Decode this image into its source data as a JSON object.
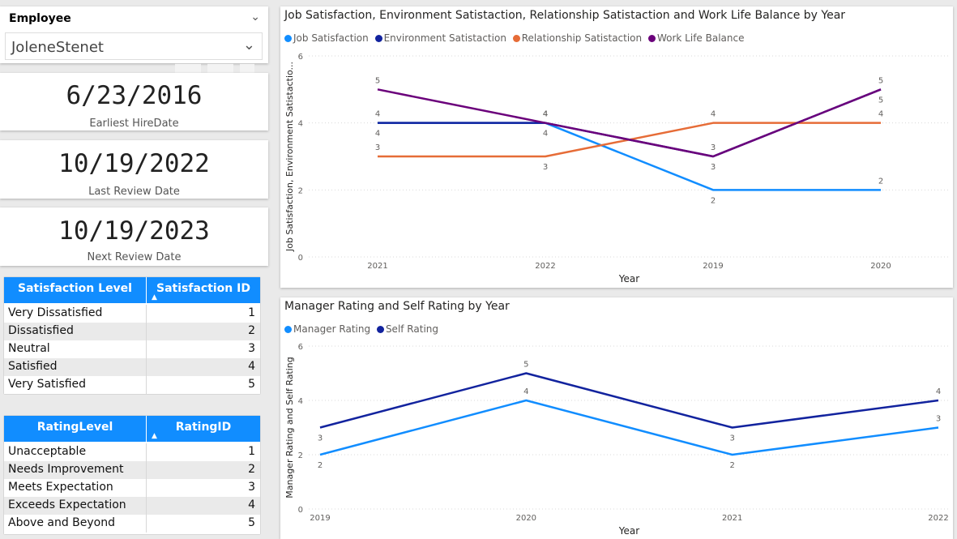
{
  "slicer": {
    "title": "Employee",
    "selected": "JoleneStenet"
  },
  "kpis": [
    {
      "value": "6/23/2016",
      "label": "Earliest HireDate"
    },
    {
      "value": "10/19/2022",
      "label": "Last Review Date"
    },
    {
      "value": "10/19/2023",
      "label": "Next Review Date"
    }
  ],
  "satisfaction_table": {
    "headers": [
      "Satisfaction Level",
      "Satisfaction ID"
    ],
    "rows": [
      [
        "Very Dissatisfied",
        "1"
      ],
      [
        "Dissatisfied",
        "2"
      ],
      [
        "Neutral",
        "3"
      ],
      [
        "Satisfied",
        "4"
      ],
      [
        "Very Satisfied",
        "5"
      ]
    ]
  },
  "rating_table": {
    "headers": [
      "RatingLevel",
      "RatingID"
    ],
    "rows": [
      [
        "Unacceptable",
        "1"
      ],
      [
        "Needs Improvement",
        "2"
      ],
      [
        "Meets Expectation",
        "3"
      ],
      [
        "Exceeds Expectation",
        "4"
      ],
      [
        "Above and Beyond",
        "5"
      ]
    ]
  },
  "icons": {
    "slicer_header": "chevron-down-icon",
    "dropdown": "chevron-down-icon",
    "sort": "sort-ascending-icon"
  },
  "chart_data": [
    {
      "type": "line",
      "title": "Job Satisfaction, Environment Satistaction, Relationship Satistaction and Work Life Balance by Year",
      "xlabel": "Year",
      "ylabel": "Job Satisfaction, Environment Satistactio...",
      "ylim": [
        0,
        6
      ],
      "yticks": [
        "0",
        "2",
        "4",
        "6"
      ],
      "categories": [
        "2021",
        "2022",
        "2019",
        "2020"
      ],
      "grid": true,
      "legend_position": "top-left",
      "series": [
        {
          "name": "Job Satisfaction",
          "color": "#118dff",
          "values": [
            4,
            4,
            2,
            2
          ],
          "labels": [
            "4",
            "4",
            "2",
            "2"
          ]
        },
        {
          "name": "Environment Satistaction",
          "color": "#12239e",
          "values": [
            4,
            4,
            3,
            5
          ],
          "labels": [
            "4",
            "4",
            "3",
            "5"
          ]
        },
        {
          "name": "Relationship Satistaction",
          "color": "#e66c37",
          "values": [
            3,
            3,
            4,
            4
          ],
          "labels": [
            "3",
            "3",
            "4",
            "4"
          ]
        },
        {
          "name": "Work Life Balance",
          "color": "#6b007b",
          "values": [
            5,
            4,
            3,
            5
          ],
          "labels": [
            "5",
            "4",
            "3",
            "5"
          ]
        }
      ]
    },
    {
      "type": "line",
      "title": "Manager Rating and Self Rating by Year",
      "xlabel": "Year",
      "ylabel": "Manager Rating and Self Rating",
      "ylim": [
        0,
        6
      ],
      "yticks": [
        "0",
        "2",
        "4",
        "6"
      ],
      "categories": [
        "2019",
        "2020",
        "2021",
        "2022"
      ],
      "grid": true,
      "legend_position": "top-left",
      "series": [
        {
          "name": "Manager Rating",
          "color": "#118dff",
          "values": [
            2,
            4,
            2,
            3
          ],
          "labels": [
            "2",
            "4",
            "2",
            "3"
          ]
        },
        {
          "name": "Self Rating",
          "color": "#12239e",
          "values": [
            3,
            5,
            3,
            4
          ],
          "labels": [
            "3",
            "5",
            "3",
            "4"
          ]
        }
      ]
    }
  ]
}
